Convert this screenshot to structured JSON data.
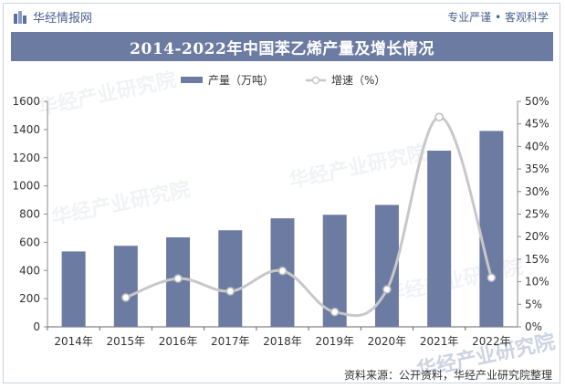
{
  "header": {
    "brand": "华经情报网",
    "slogan": "专业严谨 • 客观科学"
  },
  "watermark_text": "华经产业研究院",
  "source": "资料来源：公开资料，华经产业研究院整理",
  "colors": {
    "bar": "#6c7ba2",
    "line": "#c8c8c8",
    "title_bg": "#6c7ba2"
  },
  "chart_data": {
    "type": "bar",
    "title": "2014-2022年中国苯乙烯产量及增长情况",
    "categories": [
      "2014年",
      "2015年",
      "2016年",
      "2017年",
      "2018年",
      "2019年",
      "2020年",
      "2021年",
      "2022年"
    ],
    "series": [
      {
        "name": "产量（万吨）",
        "type": "bar",
        "axis": "left",
        "values": [
          535,
          575,
          635,
          685,
          770,
          795,
          865,
          1250,
          1390
        ]
      },
      {
        "name": "增速（%）",
        "type": "line",
        "axis": "right",
        "values": [
          null,
          6.5,
          10.7,
          7.9,
          12.4,
          3.3,
          8.3,
          46.5,
          10.9
        ]
      }
    ],
    "y_left": {
      "min": 0,
      "max": 1600,
      "ticks": [
        0,
        200,
        400,
        600,
        800,
        1000,
        1200,
        1400,
        1600
      ]
    },
    "y_right": {
      "min": 0,
      "max": 50,
      "ticks": [
        "0%",
        "5%",
        "10%",
        "15%",
        "20%",
        "25%",
        "30%",
        "35%",
        "40%",
        "45%",
        "50%"
      ]
    },
    "legend_position": "top-center",
    "grid": false
  }
}
